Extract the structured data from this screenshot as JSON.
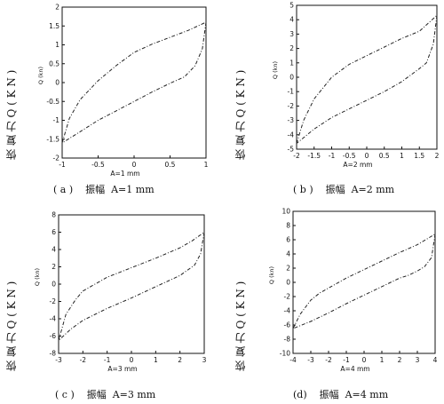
{
  "side_label": "恢 复 力 Q ( K N )",
  "chart_data": [
    {
      "type": "line",
      "caption": "( a )    振幅  A=1 mm",
      "xlabel": "A=1 mm",
      "ylabel": "Q (kn)",
      "xlim": [
        -1,
        1
      ],
      "ylim": [
        -2,
        2
      ],
      "xticks": [
        "-1",
        "-0.5",
        "0",
        "0.5",
        "1"
      ],
      "xtick_values": [
        -1,
        -0.5,
        0,
        0.5,
        1
      ],
      "yticks": [
        "-2",
        "-1.5",
        "-1",
        "-0.5",
        "0",
        "0.5",
        "1",
        "1.5",
        "2"
      ],
      "ytick_values": [
        -2,
        -1.5,
        -1,
        -0.5,
        0,
        0.5,
        1,
        1.5,
        2
      ],
      "series": [
        {
          "x": [
            -1,
            -0.9,
            -0.75,
            -0.5,
            -0.25,
            0,
            0.25,
            0.5,
            0.75,
            1
          ],
          "y": [
            -1.6,
            -0.95,
            -0.45,
            0.05,
            0.45,
            0.8,
            1.02,
            1.2,
            1.38,
            1.6
          ]
        },
        {
          "x": [
            1,
            0.95,
            0.85,
            0.7,
            0.5,
            0.25,
            0,
            -0.25,
            -0.5,
            -0.75,
            -1
          ],
          "y": [
            1.6,
            0.9,
            0.45,
            0.15,
            -0.02,
            -0.25,
            -0.5,
            -0.75,
            -1.0,
            -1.3,
            -1.6
          ]
        }
      ]
    },
    {
      "type": "line",
      "caption": "( b )    振幅  A=2 mm",
      "xlabel": "A=2 mm",
      "ylabel": "Q (kn)",
      "xlim": [
        -2,
        2
      ],
      "ylim": [
        -5,
        5
      ],
      "xticks": [
        "-2",
        "-1.5",
        "-1",
        "-0.5",
        "0",
        "0.5",
        "1",
        "1.5",
        "2"
      ],
      "xtick_values": [
        -2,
        -1.5,
        -1,
        -0.5,
        0,
        0.5,
        1,
        1.5,
        2
      ],
      "yticks": [
        "-5",
        "-4",
        "-3",
        "-2",
        "-1",
        "0",
        "1",
        "2",
        "3",
        "4",
        "5"
      ],
      "ytick_values": [
        -5,
        -4,
        -3,
        -2,
        -1,
        0,
        1,
        2,
        3,
        4,
        5
      ],
      "series": [
        {
          "x": [
            -2,
            -1.8,
            -1.5,
            -1,
            -0.5,
            0,
            0.5,
            1,
            1.5,
            2
          ],
          "y": [
            -4.6,
            -3,
            -1.5,
            0,
            0.9,
            1.5,
            2.1,
            2.7,
            3.2,
            4.3
          ]
        },
        {
          "x": [
            2,
            1.9,
            1.7,
            1.5,
            1,
            0.5,
            0,
            -0.5,
            -1,
            -1.5,
            -2
          ],
          "y": [
            4.3,
            2.3,
            1.0,
            0.6,
            -0.3,
            -1.0,
            -1.6,
            -2.2,
            -2.8,
            -3.6,
            -4.6
          ]
        }
      ]
    },
    {
      "type": "line",
      "caption": "( c )    振幅  A=3 mm",
      "xlabel": "A=3 mm",
      "ylabel": "Q (kn)",
      "xlim": [
        -3,
        3
      ],
      "ylim": [
        -8,
        8
      ],
      "xticks": [
        "-3",
        "-2",
        "-1",
        "0",
        "1",
        "2",
        "3"
      ],
      "xtick_values": [
        -3,
        -2,
        -1,
        0,
        1,
        2,
        3
      ],
      "yticks": [
        "-8",
        "-6",
        "-4",
        "-2",
        "0",
        "2",
        "4",
        "6",
        "8"
      ],
      "ytick_values": [
        -8,
        -6,
        -4,
        -2,
        0,
        2,
        4,
        6,
        8
      ],
      "series": [
        {
          "x": [
            -3,
            -2.7,
            -2.3,
            -2,
            -1,
            0,
            1,
            2,
            2.5,
            3
          ],
          "y": [
            -6.5,
            -3.5,
            -1.8,
            -0.8,
            0.8,
            1.9,
            3.0,
            4.2,
            5.0,
            6.0
          ]
        },
        {
          "x": [
            3,
            2.85,
            2.6,
            2.3,
            2,
            1,
            0,
            -1,
            -2,
            -2.5,
            -3
          ],
          "y": [
            6.0,
            3.5,
            2.2,
            1.6,
            1.0,
            -0.3,
            -1.6,
            -2.8,
            -4.2,
            -5.2,
            -6.5
          ]
        }
      ]
    },
    {
      "type": "line",
      "caption": "(d)    振幅  A=4 mm",
      "xlabel": "A=4 mm",
      "ylabel": "Q (kn)",
      "xlim": [
        -4,
        4
      ],
      "ylim": [
        -10,
        10
      ],
      "xticks": [
        "-4",
        "-3",
        "-2",
        "-1",
        "0",
        "1",
        "2",
        "3",
        "4"
      ],
      "xtick_values": [
        -4,
        -3,
        -2,
        -1,
        0,
        1,
        2,
        3,
        4
      ],
      "yticks": [
        "-10",
        "-8",
        "-6",
        "-4",
        "-2",
        "0",
        "2",
        "4",
        "6",
        "8",
        "10"
      ],
      "ytick_values": [
        -10,
        -8,
        -6,
        -4,
        -2,
        0,
        2,
        4,
        6,
        8,
        10
      ],
      "series": [
        {
          "x": [
            -4,
            -3.6,
            -3,
            -2.5,
            -2,
            -1,
            0,
            1,
            2,
            3,
            4
          ],
          "y": [
            -6.5,
            -4.5,
            -2.5,
            -1.5,
            -0.8,
            0.6,
            1.8,
            3.0,
            4.2,
            5.3,
            6.8
          ]
        },
        {
          "x": [
            4,
            3.8,
            3.4,
            3,
            2.5,
            2,
            1,
            0,
            -1,
            -2,
            -3,
            -4
          ],
          "y": [
            6.8,
            3.5,
            2.2,
            1.6,
            1.0,
            0.6,
            -0.6,
            -1.8,
            -3.0,
            -4.3,
            -5.5,
            -6.5
          ]
        }
      ]
    }
  ]
}
